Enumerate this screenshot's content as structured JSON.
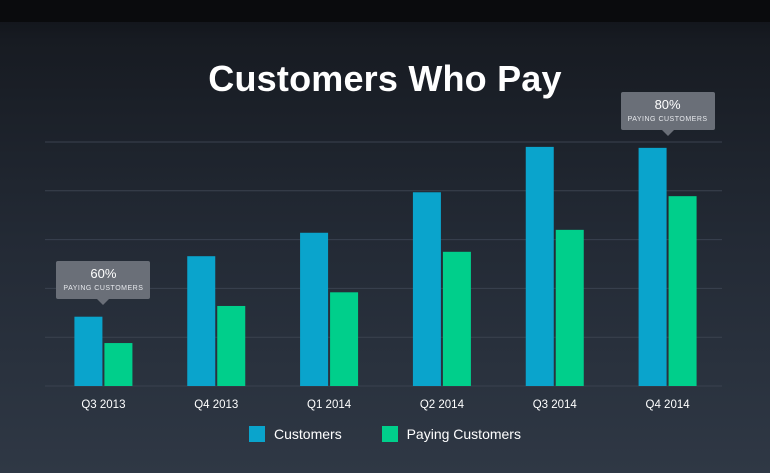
{
  "colors": {
    "customers": "#0aa4cc",
    "paying": "#00cf8b",
    "grid": "#3a424f",
    "tick_text": "#ffffff"
  },
  "chart_data": {
    "type": "bar",
    "title": "Customers Who Pay",
    "xlabel": "",
    "ylabel": "",
    "categories": [
      "Q3 2013",
      "Q4 2013",
      "Q1 2014",
      "Q2 2014",
      "Q3 2014",
      "Q4 2014"
    ],
    "series": [
      {
        "name": "Customers",
        "values": [
          1.42,
          2.66,
          3.14,
          3.97,
          4.9,
          4.88
        ]
      },
      {
        "name": "Paying Customers",
        "values": [
          0.88,
          1.64,
          1.92,
          2.75,
          3.2,
          3.89
        ]
      }
    ],
    "ylim": [
      0,
      5
    ],
    "grid": true,
    "legend_position": "bottom",
    "annotations": [
      {
        "category": "Q3 2013",
        "value": "60%",
        "label": "PAYING CUSTOMERS"
      },
      {
        "category": "Q4 2014",
        "value": "80%",
        "label": "PAYING CUSTOMERS"
      }
    ]
  }
}
